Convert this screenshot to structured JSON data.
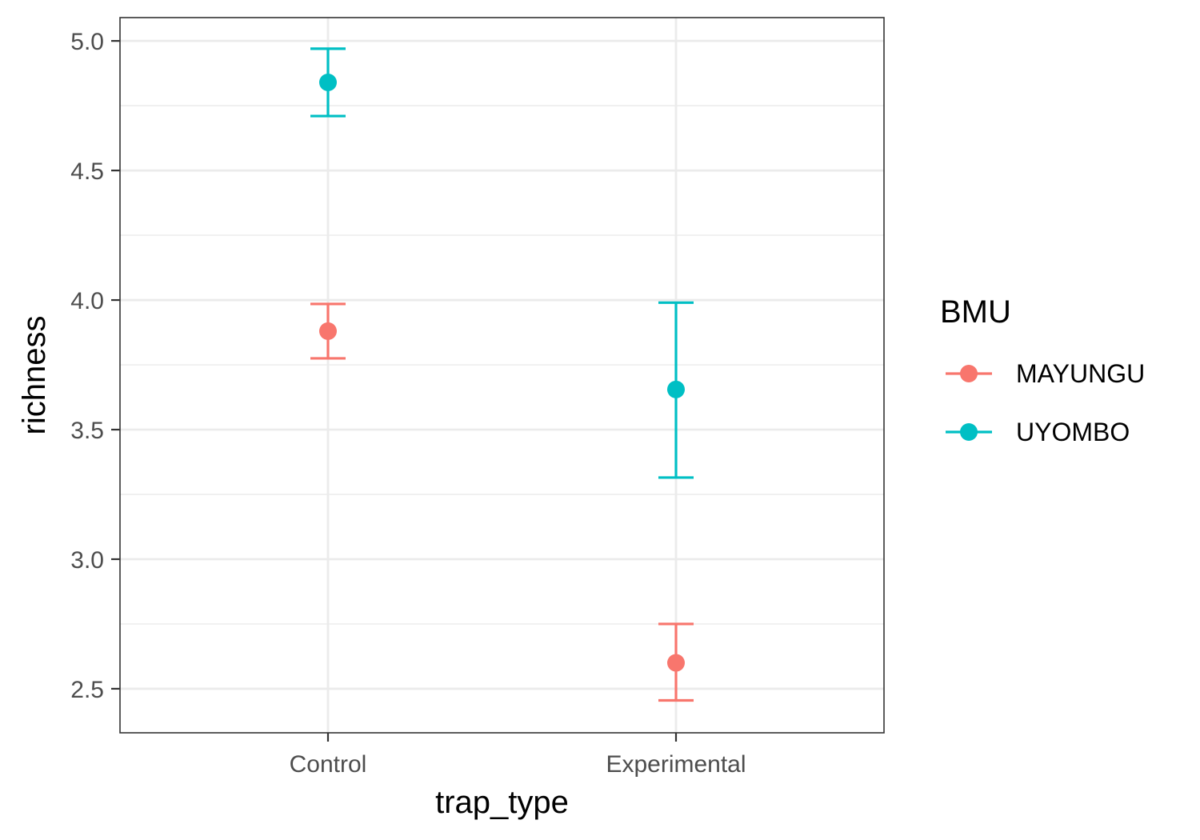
{
  "chart_data": {
    "type": "scatter",
    "subtype": "point-with-errorbars",
    "xlabel": "trap_type",
    "ylabel": "richness",
    "categories": [
      "Control",
      "Experimental"
    ],
    "ylim": [
      2.33,
      5.09
    ],
    "yticks": [
      2.5,
      3.0,
      3.5,
      4.0,
      4.5,
      5.0
    ],
    "ytick_labels": [
      "2.5",
      "3.0",
      "3.5",
      "4.0",
      "4.5",
      "5.0"
    ],
    "grid": true,
    "theme": "bw",
    "legend": {
      "title": "BMU",
      "position": "right"
    },
    "series": [
      {
        "name": "MAYUNGU",
        "color": "#F8766D",
        "points": [
          {
            "category": "Control",
            "y": 3.88,
            "ymin": 3.775,
            "ymax": 3.985
          },
          {
            "category": "Experimental",
            "y": 2.6,
            "ymin": 2.455,
            "ymax": 2.75
          }
        ]
      },
      {
        "name": "UYOMBO",
        "color": "#00BFC4",
        "points": [
          {
            "category": "Control",
            "y": 4.84,
            "ymin": 4.71,
            "ymax": 4.97
          },
          {
            "category": "Experimental",
            "y": 3.655,
            "ymin": 3.315,
            "ymax": 3.99
          }
        ]
      }
    ]
  }
}
